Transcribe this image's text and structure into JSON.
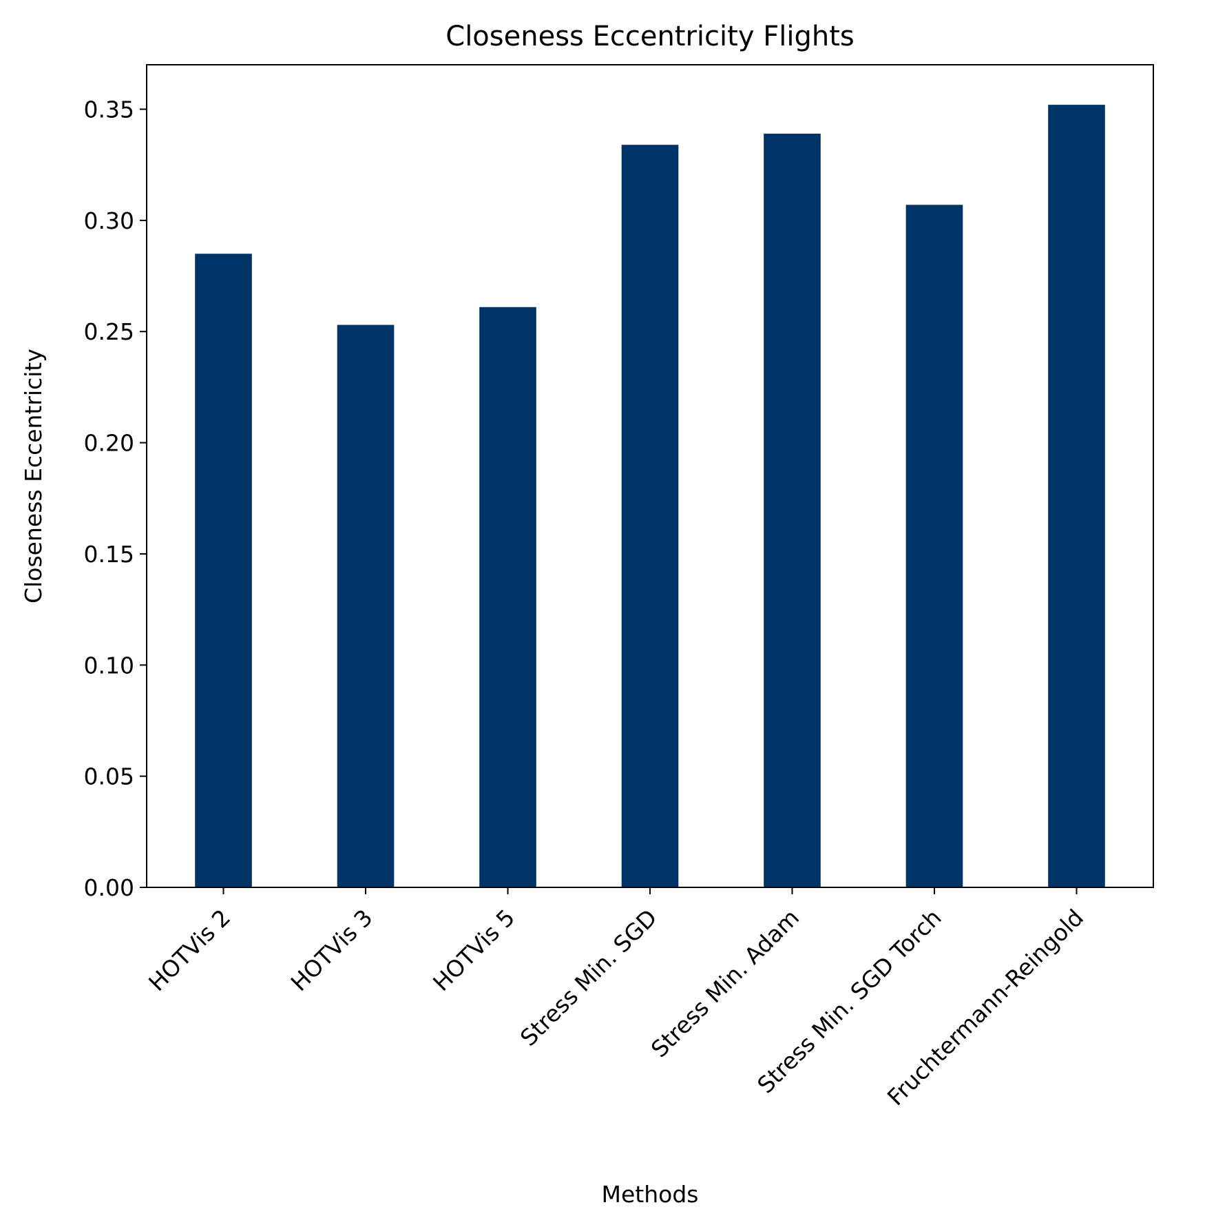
{
  "chart_data": {
    "type": "bar",
    "title": "Closeness Eccentricity Flights",
    "xlabel": "Methods",
    "ylabel": "Closeness Eccentricity",
    "categories": [
      "HOTVis 2",
      "HOTVis 3",
      "HOTVis 5",
      "Stress Min. SGD",
      "Stress Min. Adam",
      "Stress Min. SGD Torch",
      "Fruchtermann-Reingold"
    ],
    "values": [
      0.285,
      0.253,
      0.261,
      0.334,
      0.339,
      0.307,
      0.352
    ],
    "ylim": [
      0,
      0.37
    ],
    "yticks": [
      0.0,
      0.05,
      0.1,
      0.15,
      0.2,
      0.25,
      0.3,
      0.35
    ],
    "ytick_labels": [
      "0.00",
      "0.05",
      "0.10",
      "0.15",
      "0.20",
      "0.25",
      "0.30",
      "0.35"
    ],
    "grid": false,
    "bar_color": "#003366",
    "x_tick_rotation": "45deg"
  }
}
